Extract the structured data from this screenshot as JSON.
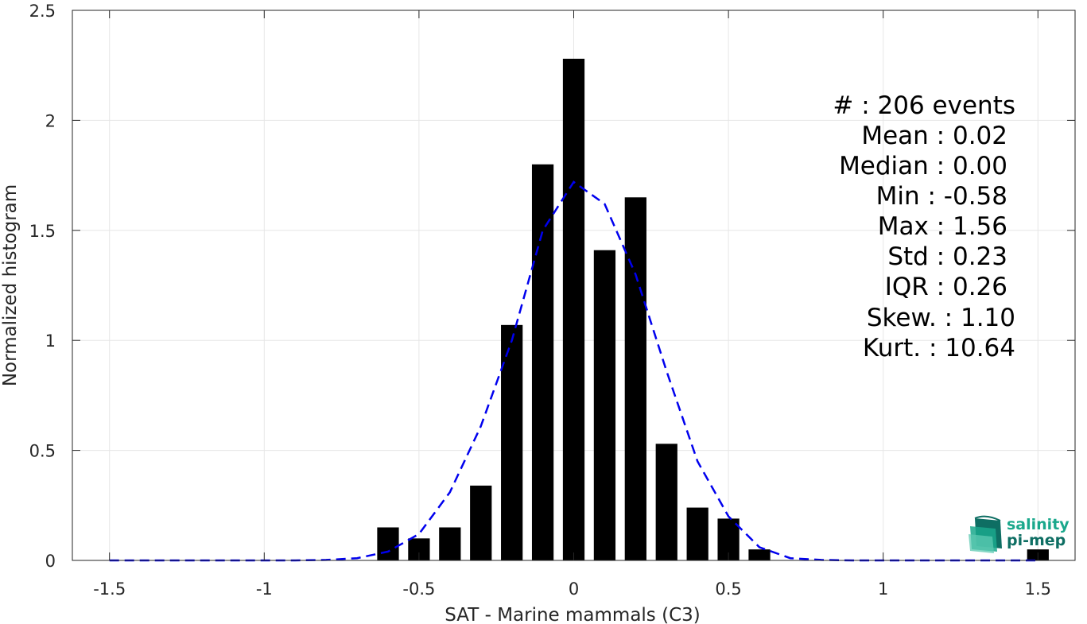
{
  "colors": {
    "bar": "#000000",
    "fit": "#0000ee",
    "grid": "#e6e6e6",
    "axis": "#262626",
    "logo_primary": "#1aa88c",
    "logo_secondary": "#0e6e63"
  },
  "chart_data": {
    "type": "bar",
    "xlabel": "SAT - Marine mammals (C3)",
    "ylabel": "Normalized histogram",
    "xlim": [
      -1.62,
      1.62
    ],
    "ylim": [
      0,
      2.5
    ],
    "grid": true,
    "xticks": [
      "-1.5",
      "-1",
      "-0.5",
      "0",
      "0.5",
      "1",
      "1.5"
    ],
    "yticks": [
      "0",
      "0.5",
      "1",
      "1.5",
      "2",
      "2.5"
    ],
    "bar_width": 0.07,
    "bars": {
      "x": [
        -0.6,
        -0.5,
        -0.4,
        -0.3,
        -0.2,
        -0.1,
        0.0,
        0.1,
        0.2,
        0.3,
        0.4,
        0.5,
        0.6,
        1.5
      ],
      "values": [
        0.15,
        0.1,
        0.15,
        0.34,
        1.07,
        1.8,
        2.28,
        1.41,
        1.65,
        0.53,
        0.24,
        0.19,
        0.05,
        0.05
      ]
    },
    "fit_curve": {
      "style": "dashed",
      "x": [
        -1.5,
        -1.4,
        -1.3,
        -1.2,
        -1.1,
        -1.0,
        -0.9,
        -0.8,
        -0.7,
        -0.6,
        -0.5,
        -0.4,
        -0.3,
        -0.2,
        -0.1,
        0.0,
        0.1,
        0.2,
        0.3,
        0.4,
        0.5,
        0.6,
        0.7,
        0.8,
        0.9,
        1.0,
        1.1,
        1.2,
        1.3,
        1.4,
        1.5
      ],
      "y": [
        0.0,
        0.0,
        0.0,
        0.0,
        0.0,
        0.0,
        0.0,
        0.002,
        0.01,
        0.04,
        0.12,
        0.31,
        0.61,
        1.0,
        1.5,
        1.72,
        1.62,
        1.3,
        0.86,
        0.45,
        0.2,
        0.06,
        0.01,
        0.002,
        0.0,
        0.0,
        0.0,
        0.0,
        0.0,
        0.0,
        0.0
      ]
    }
  },
  "stats": [
    "#  : 206 events",
    "Mean : 0.02",
    "Median : 0.00",
    "Min : -0.58",
    "Max : 1.56",
    "Std : 0.23",
    "IQR : 0.26",
    "Skew. : 1.10",
    "Kurt. : 10.64"
  ],
  "logo": {
    "line1": "salinity",
    "line2": "pi-mep"
  }
}
